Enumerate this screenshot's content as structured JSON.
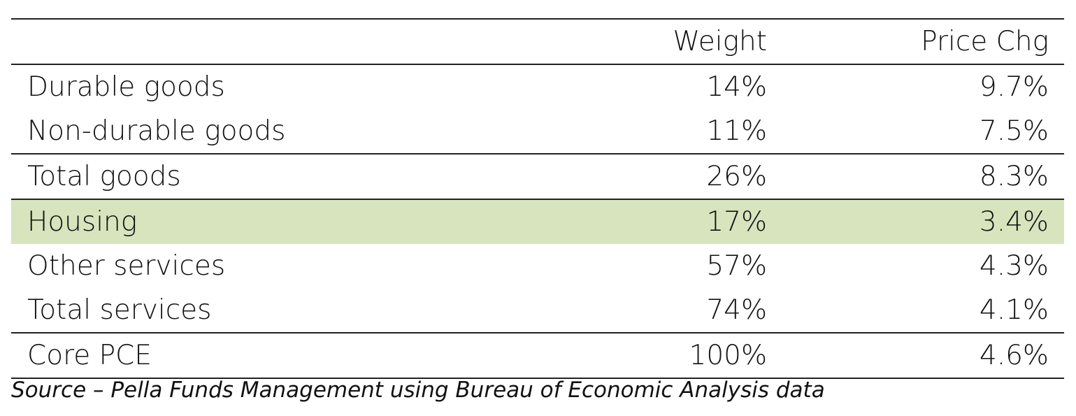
{
  "table": {
    "columns": [
      "Weight",
      "Price Chg"
    ],
    "rows": [
      [
        "Durable goods",
        "14%",
        "9.7%"
      ],
      [
        "Non-durable goods",
        "11%",
        "7.5%"
      ],
      [
        "Total goods",
        "26%",
        "8.3%"
      ],
      [
        "Housing",
        "17%",
        "3.4%"
      ],
      [
        "Other services",
        "57%",
        "4.3%"
      ],
      [
        "Total services",
        "74%",
        "4.1%"
      ],
      [
        "Core PCE",
        "100%",
        "4.6%"
      ]
    ],
    "highlight": {
      "row": 3,
      "color": "#d7e4bd"
    }
  },
  "source": "Source – Pella Funds Management using Bureau of Economic Analysis data"
}
